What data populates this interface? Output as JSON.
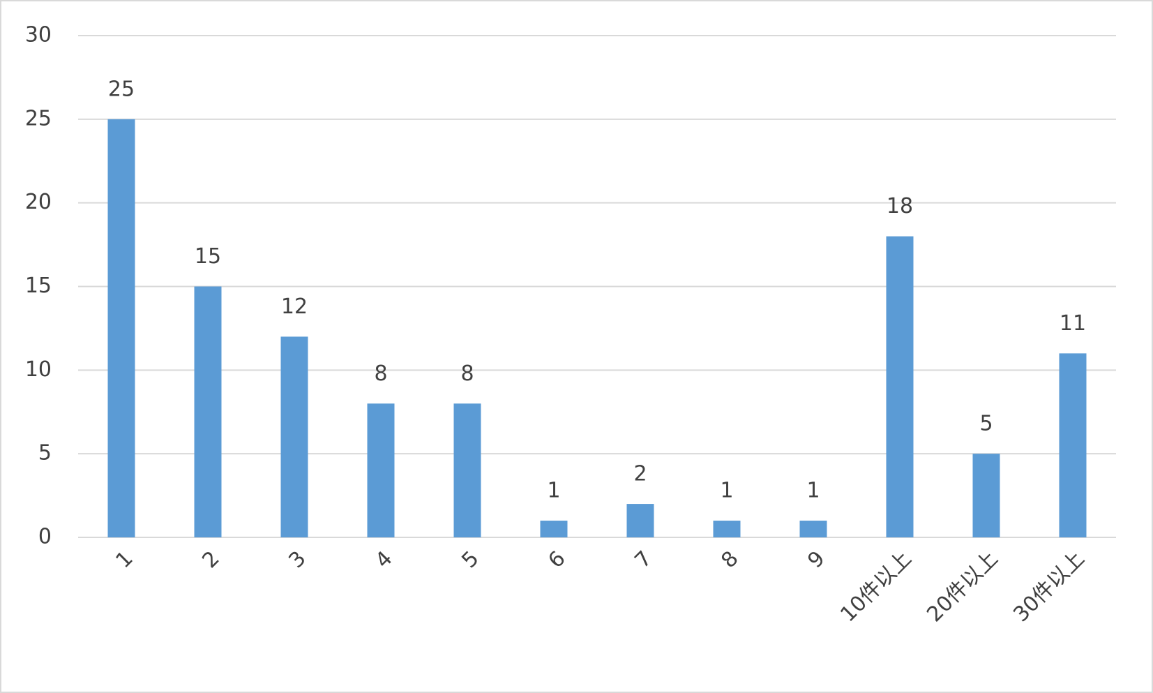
{
  "chart_data": {
    "type": "bar",
    "categories": [
      "1",
      "2",
      "3",
      "4",
      "5",
      "6",
      "7",
      "8",
      "9",
      "10件以上",
      "20件以上",
      "30件以上"
    ],
    "values": [
      25,
      15,
      12,
      8,
      8,
      1,
      2,
      1,
      1,
      18,
      5,
      11
    ],
    "color": "#5b9bd5",
    "ylim": [
      0,
      30
    ],
    "yticks": [
      0,
      5,
      10,
      15,
      20,
      25,
      30
    ],
    "grid": true
  }
}
